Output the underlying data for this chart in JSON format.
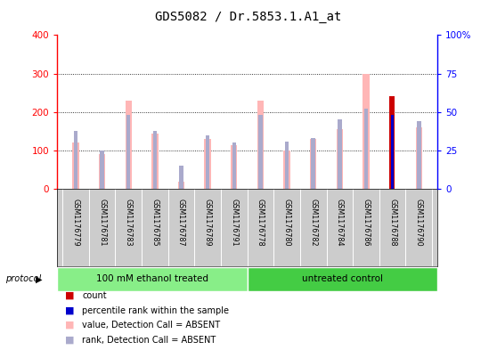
{
  "title": "GDS5082 / Dr.5853.1.A1_at",
  "samples": [
    "GSM1176779",
    "GSM1176781",
    "GSM1176783",
    "GSM1176785",
    "GSM1176787",
    "GSM1176789",
    "GSM1176791",
    "GSM1176778",
    "GSM1176780",
    "GSM1176782",
    "GSM1176784",
    "GSM1176786",
    "GSM1176788",
    "GSM1176790"
  ],
  "value_absent": [
    120,
    90,
    230,
    145,
    20,
    130,
    115,
    230,
    100,
    130,
    155,
    300,
    0,
    160
  ],
  "rank_absent": [
    38,
    25,
    48,
    38,
    15,
    35,
    30,
    48,
    31,
    33,
    45,
    52,
    0,
    44
  ],
  "count": [
    0,
    0,
    0,
    0,
    0,
    0,
    0,
    0,
    0,
    0,
    0,
    0,
    242,
    0
  ],
  "percentile_rank": [
    0,
    0,
    0,
    0,
    0,
    0,
    0,
    0,
    0,
    0,
    0,
    0,
    48,
    0
  ],
  "groups": [
    {
      "label": "100 mM ethanol treated",
      "start": 0,
      "end": 7,
      "color": "#88EE88"
    },
    {
      "label": "untreated control",
      "start": 7,
      "end": 14,
      "color": "#44CC44"
    }
  ],
  "left_ylim": [
    0,
    400
  ],
  "right_ylim": [
    0,
    100
  ],
  "left_yticks": [
    0,
    100,
    200,
    300,
    400
  ],
  "right_yticks": [
    0,
    25,
    50,
    75,
    100
  ],
  "right_yticklabels": [
    "0",
    "25",
    "50",
    "75",
    "100%"
  ],
  "left_color": "#FF0000",
  "right_color": "#0000FF",
  "value_bar_width": 0.25,
  "rank_bar_width": 0.15,
  "count_bar_width": 0.18,
  "perc_bar_width": 0.12,
  "value_absent_color": "#FFB6B6",
  "rank_absent_color": "#AAAACC",
  "count_color": "#CC0000",
  "percentile_color": "#0000CC",
  "plot_bg": "#FFFFFF",
  "label_area_bg": "#CCCCCC",
  "protocol_label": "protocol",
  "n_samples": 14,
  "group_split": 7
}
